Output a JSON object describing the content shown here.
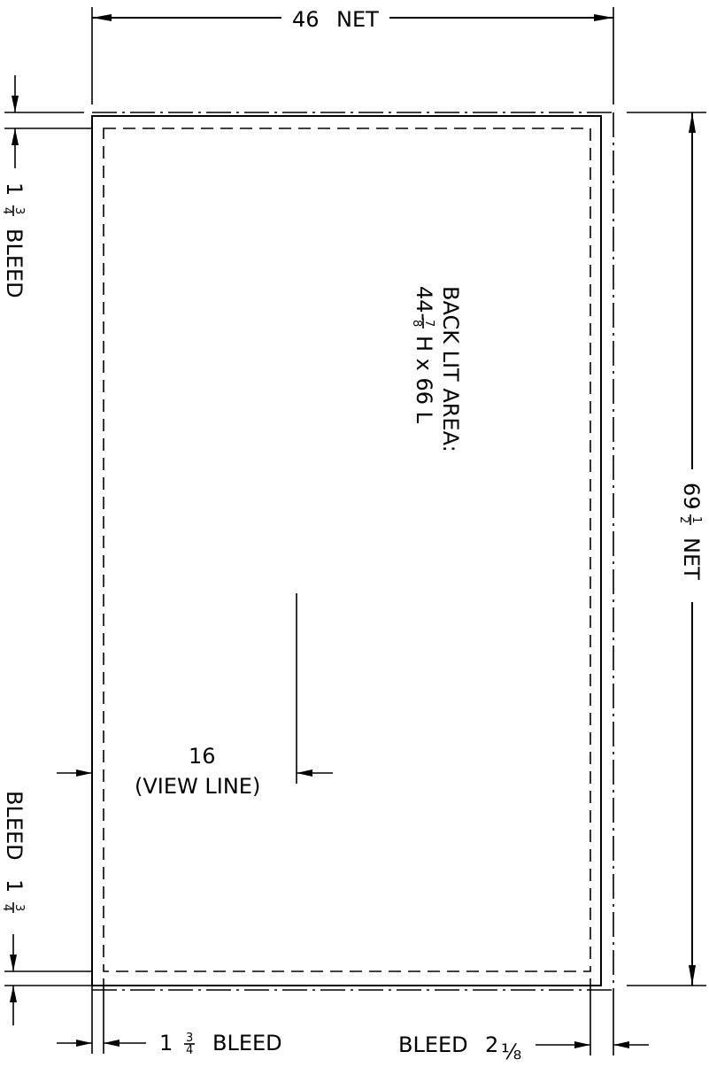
{
  "dimensions": {
    "width_net": {
      "value": "46",
      "label": "NET"
    },
    "height_net": {
      "whole": "69",
      "frac_num": "1",
      "frac_den": "2",
      "label": "NET"
    },
    "top_bleed": {
      "whole": "1",
      "frac_num": "3",
      "frac_den": "4",
      "label": "BLEED"
    },
    "bottom_bleed": {
      "label": "BLEED",
      "whole": "1",
      "frac_num": "3",
      "frac_den": "4"
    },
    "left_bleed": {
      "whole": "1",
      "frac_num": "3",
      "frac_den": "4",
      "label": "BLEED"
    },
    "right_bleed": {
      "label": "BLEED",
      "whole": "2",
      "fraction": "⅛"
    },
    "view_line": {
      "value": "16",
      "label": "(VIEW LINE)"
    }
  },
  "back_lit_area": {
    "line1": "BACK LIT AREA:",
    "line2_prefix": "44-",
    "frac_num": "7",
    "frac_den": "8",
    "line2_suffix": "H x 66 L"
  }
}
